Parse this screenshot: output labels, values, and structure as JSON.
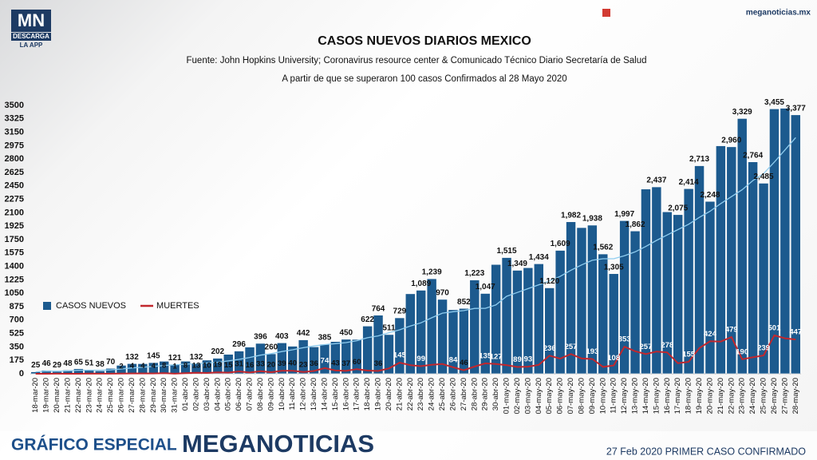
{
  "header": {
    "logo": "MN",
    "logo_sub": "DESCARGA",
    "logo_app": "LA APP",
    "site": "meganoticias.mx"
  },
  "chart_data": {
    "type": "bar-line",
    "title": "CASOS NUEVOS DIARIOS MEXICO",
    "subtitle": "Fuente: John Hopkins University; Coronavirus resource center & Comunicado Técnico Diario Secretaría de Salud",
    "subtitle2": "A partir de que se superaron 100 casos Confirmados al 28 Mayo 2020",
    "categories": [
      "18-mar-20",
      "19-mar-20",
      "20-mar-20",
      "21-mar-20",
      "22-mar-20",
      "23-mar-20",
      "24-mar-20",
      "25-mar-20",
      "26-mar-20",
      "27-mar-20",
      "28-mar-20",
      "29-mar-20",
      "30-mar-20",
      "31-mar-20",
      "01-abr-20",
      "02-abr-20",
      "03-abr-20",
      "04-abr-20",
      "05-abr-20",
      "06-abr-20",
      "07-abr-20",
      "08-abr-20",
      "09-abr-20",
      "10-abr-20",
      "11-abr-20",
      "12-abr-20",
      "13-abr-20",
      "14-abr-20",
      "15-abr-20",
      "16-abr-20",
      "17-abr-20",
      "18-abr-20",
      "19-abr-20",
      "20-abr-20",
      "21-abr-20",
      "22-abr-20",
      "23-abr-20",
      "24-abr-20",
      "25-abr-20",
      "26-abr-20",
      "27-abr-20",
      "28-abr-20",
      "29-abr-20",
      "30-abr-20",
      "01-may-20",
      "02-may-20",
      "03-may-20",
      "04-may-20",
      "05-may-20",
      "06-may-20",
      "07-may-20",
      "08-may-20",
      "09-may-20",
      "10-may-20",
      "11-may-20",
      "12-may-20",
      "13-may-20",
      "14-may-20",
      "15-may-20",
      "16-may-20",
      "17-may-20",
      "18-may-20",
      "19-may-20",
      "20-may-20",
      "21-may-20",
      "22-may-20",
      "23-may-20",
      "24-may-20",
      "25-may-20",
      "26-may-20",
      "27-may-20",
      "28-may-20"
    ],
    "series": [
      {
        "name": "CASOS NUEVOS",
        "kind": "bar",
        "color": "#1c5a8e",
        "values": [
          25,
          46,
          29,
          48,
          65,
          51,
          38,
          70,
          110,
          132,
          131,
          145,
          163,
          121,
          164,
          132,
          178,
          202,
          253,
          296,
          348,
          396,
          260,
          403,
          359,
          442,
          351,
          385,
          420,
          450,
          448,
          622,
          764,
          511,
          729,
          1043,
          1089,
          1239,
          970,
          835,
          852,
          1223,
          1047,
          1425,
          1515,
          1349,
          1383,
          1434,
          1120,
          1609,
          1982,
          1906,
          1938,
          1562,
          1305,
          1997,
          1862,
          2409,
          2437,
          2112,
          2075,
          2414,
          2713,
          2248,
          2973,
          2960,
          3329,
          2764,
          2485,
          3455,
          3463,
          3377
        ],
        "value_labels": [
          "25",
          "46",
          "29",
          "48",
          "65",
          "51",
          "38",
          "70",
          null,
          "132",
          null,
          "145",
          null,
          "121",
          null,
          "132",
          null,
          "202",
          null,
          "296",
          null,
          "396",
          "260",
          "403",
          null,
          "442",
          null,
          "385",
          null,
          "450",
          null,
          "622",
          "764",
          "511",
          "729",
          null,
          "1,089",
          "1,239",
          "970",
          null,
          "852",
          "1,223",
          "1,047",
          null,
          "1,515",
          "1,349",
          null,
          "1,434",
          "1,120",
          "1,609",
          "1,982",
          null,
          "1,938",
          "1,562",
          "1,305",
          "1,997",
          "1,862",
          null,
          "2,437",
          null,
          "2,075",
          "2,414",
          "2,713",
          "2,248",
          null,
          "2,960",
          "3,329",
          "2,764",
          "2,485",
          "3,455",
          null,
          "3,377"
        ]
      },
      {
        "name": "MUERTES",
        "kind": "line",
        "color": "#c1272d",
        "values": [
          0,
          0,
          1,
          0,
          0,
          2,
          1,
          1,
          2,
          4,
          4,
          4,
          8,
          1,
          8,
          13,
          10,
          19,
          15,
          31,
          16,
          33,
          20,
          39,
          40,
          23,
          36,
          74,
          43,
          37,
          60,
          42,
          36,
          70,
          145,
          113,
          99,
          117,
          127,
          84,
          46,
          94,
          135,
          127,
          113,
          89,
          93,
          117,
          236,
          197,
          257,
          199,
          193,
          90,
          108,
          353,
          294,
          257,
          290,
          278,
          138,
          155,
          334,
          424,
          420,
          479,
          190,
          215,
          239,
          501,
          463,
          447
        ],
        "value_labels": [
          null,
          null,
          null,
          null,
          null,
          null,
          null,
          null,
          "2",
          "4",
          "4",
          "4",
          "8",
          "1",
          "8",
          "13",
          "10",
          "19",
          "15",
          "31",
          "16",
          "33",
          "20",
          "39",
          "40",
          "23",
          "36",
          "74",
          "43",
          "37",
          "60",
          null,
          "36",
          null,
          "145",
          null,
          "99",
          null,
          null,
          "84",
          "46",
          null,
          "135",
          "127",
          null,
          "89",
          "93",
          null,
          "236",
          null,
          "257",
          null,
          "193",
          null,
          "108",
          "353",
          null,
          "257",
          null,
          "278",
          null,
          "155",
          null,
          "424",
          null,
          "479",
          "190",
          null,
          "239",
          "501",
          null,
          "447"
        ]
      },
      {
        "kind": "line",
        "color": "#8fcdf0",
        "values": [
          25,
          35,
          33,
          37,
          45,
          47,
          46,
          50,
          62,
          76,
          84,
          95,
          107,
          117,
          125,
          131,
          141,
          150,
          168,
          187,
          212,
          243,
          262,
          290,
          312,
          340,
          362,
          380,
          393,
          406,
          431,
          470,
          494,
          535,
          573,
          623,
          665,
          730,
          791,
          809,
          824,
          852,
          853,
          898,
          1010,
          1060,
          1110,
          1160,
          1210,
          1270,
          1350,
          1420,
          1480,
          1500,
          1500,
          1540,
          1590,
          1660,
          1740,
          1810,
          1880,
          1950,
          2040,
          2120,
          2220,
          2310,
          2400,
          2520,
          2610,
          2760,
          2920,
          3080
        ]
      }
    ],
    "ylim": [
      0,
      3500
    ],
    "yticks": [
      0,
      175,
      350,
      525,
      700,
      875,
      1050,
      1225,
      1400,
      1575,
      1750,
      1925,
      2100,
      2275,
      2450,
      2625,
      2800,
      2975,
      3150,
      3325,
      3500
    ],
    "grid": false,
    "legend": "left"
  },
  "footer": {
    "left": "GRÁFICO ESPECIAL",
    "brand": "MEGANOTICIAS",
    "right": "27 Feb 2020 PRIMER CASO CONFIRMADO"
  }
}
